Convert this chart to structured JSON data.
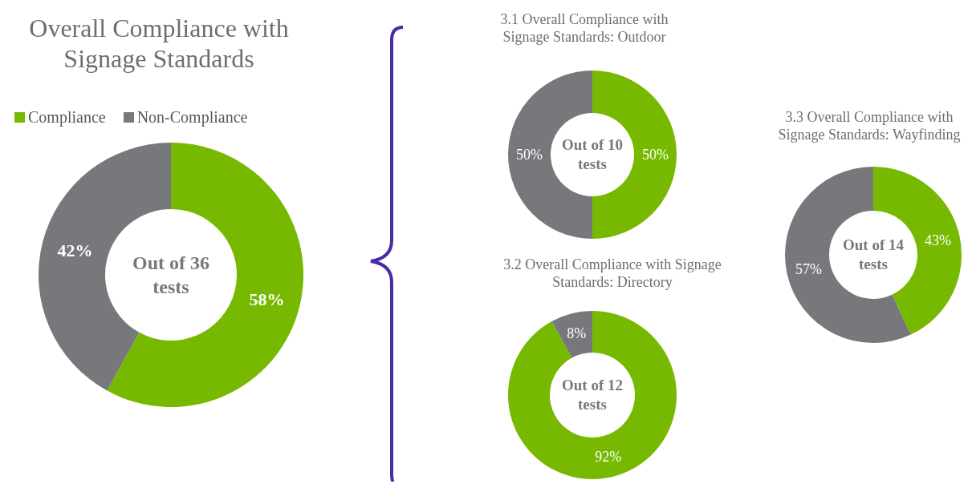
{
  "chart_data": [
    {
      "type": "donut",
      "title": "Overall Compliance with Signage Standards",
      "categories": [
        "Compliance",
        "Non-Compliance"
      ],
      "values": [
        58,
        42
      ],
      "colors": [
        "#76b900",
        "#77787b"
      ],
      "value_labels": [
        "58%",
        "42%"
      ],
      "legend": "top",
      "annotations": [
        "Out of 36 tests"
      ]
    },
    {
      "type": "donut",
      "title": "3.1 Overall Compliance with Signage Standards: Outdoor",
      "categories": [
        null,
        null
      ],
      "values": [
        50,
        50
      ],
      "colors": [
        "#76b900",
        "#77787b"
      ],
      "value_labels": [
        "50%",
        "50%"
      ],
      "annotations": [
        "Out of 10 tests"
      ]
    },
    {
      "type": "donut",
      "title": "3.2 Overall Compliance with Signage Standards: Directory",
      "categories": [
        null,
        null
      ],
      "values": [
        92,
        8
      ],
      "colors": [
        "#76b900",
        "#77787b"
      ],
      "value_labels": [
        "92%",
        "8%"
      ],
      "annotations": [
        "Out of 12 tests"
      ]
    },
    {
      "type": "donut",
      "title": "3.3 Overall Compliance with Signage Standards: Wayfinding",
      "categories": [
        null,
        null
      ],
      "values": [
        43,
        57
      ],
      "colors": [
        "#76b900",
        "#77787b"
      ],
      "value_labels": [
        "43%",
        "57%"
      ],
      "annotations": [
        "Out of 14 tests"
      ]
    }
  ]
}
